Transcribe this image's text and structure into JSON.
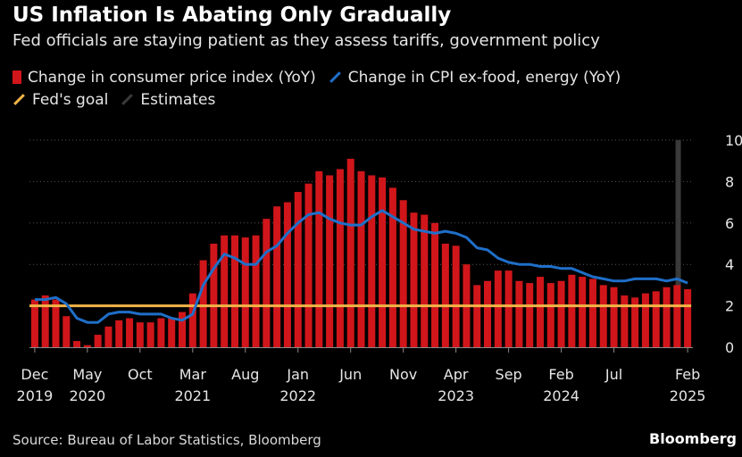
{
  "header": {
    "title": "US Inflation Is Abating Only Gradually",
    "subtitle": "Fed officials are staying patient as they assess tariffs, government policy"
  },
  "legend": {
    "cpi": "Change in consumer price index (YoY)",
    "core": "Change in CPI ex-food, energy (YoY)",
    "goal": "Fed's goal",
    "estimates": "Estimates"
  },
  "footer": {
    "source": "Source: Bureau of Labor Statistics, Bloomberg",
    "brand": "Bloomberg"
  },
  "colors": {
    "cpi": "#d0161a",
    "core": "#1f6fc9",
    "goal": "#f2b448",
    "estimates": "#3a3a3a",
    "grid": "#555555",
    "text": "#e6e6e6"
  },
  "chart_data": {
    "type": "bar",
    "title": "US Inflation Is Abating Only Gradually",
    "ylim": [
      0,
      10
    ],
    "yticks": [
      0,
      2,
      4,
      6,
      8,
      10
    ],
    "ytick_labels": [
      "0",
      "2",
      "4",
      "6",
      "8",
      "10%"
    ],
    "goal": 2,
    "xtick_labels": [
      {
        "index": 0,
        "month": "Dec",
        "year": "2019"
      },
      {
        "index": 5,
        "month": "May",
        "year": "2020"
      },
      {
        "index": 10,
        "month": "Oct",
        "year": ""
      },
      {
        "index": 15,
        "month": "Mar",
        "year": "2021"
      },
      {
        "index": 20,
        "month": "Aug",
        "year": ""
      },
      {
        "index": 25,
        "month": "Jan",
        "year": "2022"
      },
      {
        "index": 30,
        "month": "Jun",
        "year": ""
      },
      {
        "index": 35,
        "month": "Nov",
        "year": ""
      },
      {
        "index": 40,
        "month": "Apr",
        "year": "2023"
      },
      {
        "index": 45,
        "month": "Sep",
        "year": ""
      },
      {
        "index": 50,
        "month": "Feb",
        "year": "2024"
      },
      {
        "index": 55,
        "month": "Jul",
        "year": ""
      },
      {
        "index": 62,
        "month": "Feb",
        "year": "2025"
      }
    ],
    "categories": [
      "2019-12",
      "2020-01",
      "2020-02",
      "2020-03",
      "2020-04",
      "2020-05",
      "2020-06",
      "2020-07",
      "2020-08",
      "2020-09",
      "2020-10",
      "2020-11",
      "2020-12",
      "2021-01",
      "2021-02",
      "2021-03",
      "2021-04",
      "2021-05",
      "2021-06",
      "2021-07",
      "2021-08",
      "2021-09",
      "2021-10",
      "2021-11",
      "2021-12",
      "2022-01",
      "2022-02",
      "2022-03",
      "2022-04",
      "2022-05",
      "2022-06",
      "2022-07",
      "2022-08",
      "2022-09",
      "2022-10",
      "2022-11",
      "2022-12",
      "2023-01",
      "2023-02",
      "2023-03",
      "2023-04",
      "2023-05",
      "2023-06",
      "2023-07",
      "2023-08",
      "2023-09",
      "2023-10",
      "2023-11",
      "2023-12",
      "2024-01",
      "2024-02",
      "2024-03",
      "2024-04",
      "2024-05",
      "2024-06",
      "2024-07",
      "2024-08",
      "2024-09",
      "2024-10",
      "2024-11",
      "2024-12",
      "2025-01",
      "2025-02"
    ],
    "series": [
      {
        "name": "Change in consumer price index (YoY)",
        "type": "bar",
        "values": [
          2.3,
          2.5,
          2.3,
          1.5,
          0.3,
          0.1,
          0.6,
          1.0,
          1.3,
          1.4,
          1.2,
          1.2,
          1.4,
          1.4,
          1.7,
          2.6,
          4.2,
          5.0,
          5.4,
          5.4,
          5.3,
          5.4,
          6.2,
          6.8,
          7.0,
          7.5,
          7.9,
          8.5,
          8.3,
          8.6,
          9.1,
          8.5,
          8.3,
          8.2,
          7.7,
          7.1,
          6.5,
          6.4,
          6.0,
          5.0,
          4.9,
          4.0,
          3.0,
          3.2,
          3.7,
          3.7,
          3.2,
          3.1,
          3.4,
          3.1,
          3.2,
          3.5,
          3.4,
          3.3,
          3.0,
          2.9,
          2.5,
          2.4,
          2.6,
          2.7,
          2.9,
          3.0,
          2.8
        ]
      },
      {
        "name": "Change in CPI ex-food, energy (YoY)",
        "type": "line",
        "values": [
          2.3,
          2.3,
          2.4,
          2.1,
          1.4,
          1.2,
          1.2,
          1.6,
          1.7,
          1.7,
          1.6,
          1.6,
          1.6,
          1.4,
          1.3,
          1.6,
          3.0,
          3.8,
          4.5,
          4.3,
          4.0,
          4.0,
          4.6,
          4.9,
          5.5,
          6.0,
          6.4,
          6.5,
          6.2,
          6.0,
          5.9,
          5.9,
          6.3,
          6.6,
          6.3,
          6.0,
          5.7,
          5.6,
          5.5,
          5.6,
          5.5,
          5.3,
          4.8,
          4.7,
          4.3,
          4.1,
          4.0,
          4.0,
          3.9,
          3.9,
          3.8,
          3.8,
          3.6,
          3.4,
          3.3,
          3.2,
          3.2,
          3.3,
          3.3,
          3.3,
          3.2,
          3.3,
          3.1
        ]
      }
    ]
  }
}
